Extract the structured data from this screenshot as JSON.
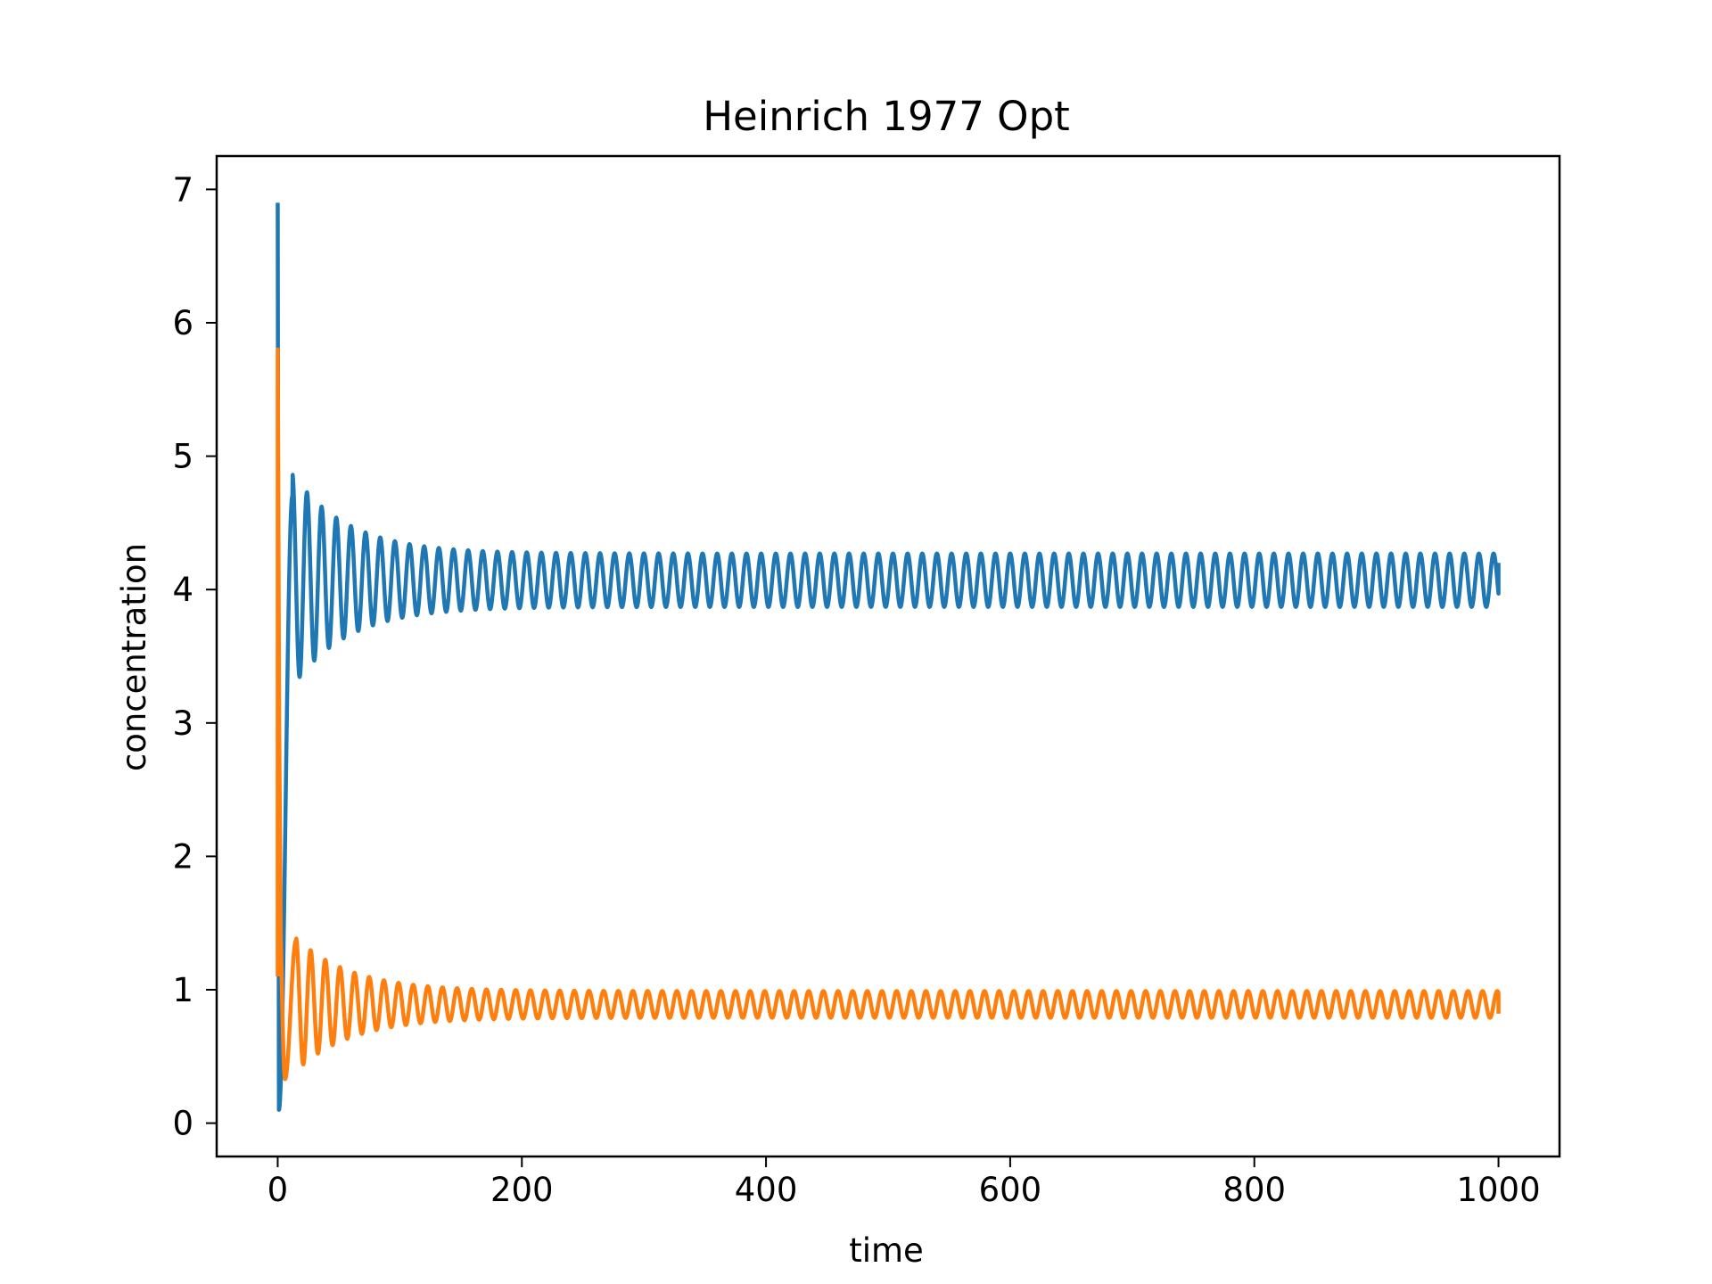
{
  "colors": {
    "background": "#ffffff",
    "axes": "#000000",
    "series_1": "#1f77b4",
    "series_2": "#ff7f0e"
  },
  "chart_data": {
    "type": "line",
    "title": "Heinrich 1977 Opt",
    "xlabel": "time",
    "ylabel": "concentration",
    "xlim": [
      -50,
      1050
    ],
    "ylim": [
      -0.25,
      7.25
    ],
    "xticks": [
      0,
      200,
      400,
      600,
      800,
      1000
    ],
    "yticks": [
      0,
      1,
      2,
      3,
      4,
      5,
      6,
      7
    ],
    "grid": false,
    "legend": "none",
    "series": [
      {
        "color": "#1f77b4",
        "initial": 6.9,
        "minimum": 0.1,
        "minimum_at": 1,
        "steady_state": 4.07,
        "amplitude_start": 0.8,
        "amplitude_end": 0.2,
        "first_peak": 4.7,
        "first_peak_at": 12,
        "period": 12,
        "final": 4.2,
        "x_end": 1000
      },
      {
        "color": "#ff7f0e",
        "initial": 1.1,
        "maximum": 5.8,
        "maximum_at": 0,
        "minimum": 0.33,
        "minimum_at": 6,
        "steady_state": 0.89,
        "amplitude_start": 0.5,
        "amplitude_end": 0.1,
        "first_peak": 1.37,
        "first_peak_at": 15,
        "period": 12,
        "final": 0.82,
        "x_end": 1000
      }
    ]
  }
}
